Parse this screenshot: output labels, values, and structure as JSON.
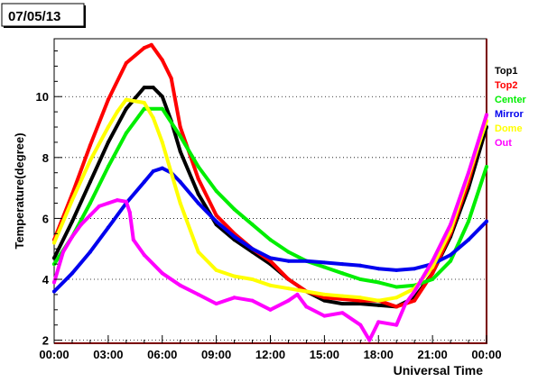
{
  "chart_data": {
    "type": "line",
    "title": "07/05/13",
    "xlabel": "Universal Time",
    "ylabel": "Temperature(degree)",
    "xlim": [
      0,
      24
    ],
    "ylim": [
      1.9,
      11.9
    ],
    "x_tick_labels": [
      "00:00",
      "03:00",
      "06:00",
      "09:00",
      "12:00",
      "15:00",
      "18:00",
      "21:00",
      "00:00"
    ],
    "x_tick_values": [
      0,
      3,
      6,
      9,
      12,
      15,
      18,
      21,
      24
    ],
    "y_tick_labels": [
      "2",
      "4",
      "6",
      "8",
      "10"
    ],
    "y_tick_values": [
      2,
      4,
      6,
      8,
      10
    ],
    "grid": "horizontal-dotted",
    "legend_placement": "right",
    "series": [
      {
        "name": "Top1",
        "color": "#000000",
        "x": [
          0,
          1,
          2,
          3,
          4,
          5,
          5.5,
          6,
          6.5,
          7,
          8,
          9,
          10,
          11,
          12,
          13,
          14,
          15,
          16,
          17,
          18,
          19,
          20,
          21,
          22,
          23,
          24
        ],
        "y": [
          4.7,
          5.9,
          7.2,
          8.5,
          9.6,
          10.3,
          10.3,
          10.0,
          9.2,
          8.2,
          6.8,
          5.8,
          5.3,
          4.9,
          4.5,
          4.0,
          3.6,
          3.3,
          3.2,
          3.2,
          3.15,
          3.1,
          3.4,
          4.2,
          5.4,
          7.0,
          9.0
        ]
      },
      {
        "name": "Top2",
        "color": "#ff0000",
        "x": [
          0,
          1,
          2,
          3,
          4,
          5,
          5.4,
          6,
          6.5,
          7,
          8,
          9,
          10,
          11,
          12,
          13,
          14,
          15,
          16,
          17,
          18,
          19,
          20,
          21,
          22,
          23,
          24
        ],
        "y": [
          5.3,
          6.8,
          8.4,
          9.9,
          11.1,
          11.6,
          11.7,
          11.2,
          10.6,
          9.0,
          7.3,
          6.1,
          5.5,
          5.0,
          4.6,
          4.0,
          3.6,
          3.4,
          3.35,
          3.3,
          3.3,
          3.1,
          3.3,
          4.2,
          5.5,
          7.2,
          9.4
        ]
      },
      {
        "name": "Center",
        "color": "#00ee00",
        "x": [
          0,
          1,
          2,
          3,
          4,
          5,
          6,
          7,
          8,
          9,
          10,
          11,
          12,
          13,
          14,
          15,
          16,
          17,
          18,
          19,
          20,
          21,
          22,
          23,
          24
        ],
        "y": [
          4.5,
          5.4,
          6.5,
          7.7,
          8.8,
          9.6,
          9.6,
          8.7,
          7.7,
          6.9,
          6.3,
          5.8,
          5.3,
          4.9,
          4.6,
          4.4,
          4.2,
          4.0,
          3.9,
          3.75,
          3.8,
          4.0,
          4.6,
          5.9,
          7.7
        ]
      },
      {
        "name": "Mirror",
        "color": "#0000ee",
        "x": [
          0,
          1,
          2,
          3,
          4,
          5,
          5.5,
          6,
          6.5,
          7,
          8,
          9,
          10,
          11,
          12,
          13,
          14,
          15,
          16,
          17,
          18,
          19,
          20,
          21,
          22,
          23,
          24
        ],
        "y": [
          3.6,
          4.2,
          4.9,
          5.7,
          6.5,
          7.2,
          7.55,
          7.65,
          7.5,
          7.2,
          6.5,
          5.9,
          5.4,
          5.0,
          4.7,
          4.6,
          4.6,
          4.55,
          4.5,
          4.45,
          4.35,
          4.3,
          4.35,
          4.5,
          4.8,
          5.3,
          5.9
        ]
      },
      {
        "name": "Dome",
        "color": "#ffff00",
        "x": [
          0,
          1,
          2,
          3,
          3.5,
          4,
          5,
          5.5,
          6,
          6.5,
          7,
          8,
          9,
          10,
          11,
          12,
          13,
          14,
          15,
          16,
          17,
          18,
          19,
          20,
          21,
          22,
          23,
          24
        ],
        "y": [
          5.2,
          6.6,
          7.9,
          9.0,
          9.5,
          9.9,
          9.8,
          9.3,
          8.5,
          7.5,
          6.5,
          4.9,
          4.3,
          4.1,
          4.0,
          3.8,
          3.7,
          3.6,
          3.5,
          3.45,
          3.4,
          3.3,
          3.4,
          3.7,
          4.4,
          5.6,
          7.4,
          9.2
        ]
      },
      {
        "name": "Out",
        "color": "#ff00ff",
        "x": [
          0,
          0.5,
          1,
          1.5,
          2,
          2.5,
          3,
          3.5,
          4,
          4.2,
          4.4,
          5,
          6,
          7,
          8,
          9,
          10,
          11,
          12,
          13,
          13.5,
          14,
          15,
          16,
          17,
          17.5,
          18,
          19,
          19.5,
          20,
          21,
          22,
          23,
          24
        ],
        "y": [
          3.9,
          4.9,
          5.4,
          5.8,
          6.1,
          6.4,
          6.5,
          6.6,
          6.55,
          6.2,
          5.3,
          4.8,
          4.2,
          3.8,
          3.5,
          3.2,
          3.4,
          3.3,
          3.0,
          3.3,
          3.5,
          3.1,
          2.8,
          2.9,
          2.5,
          2.0,
          2.6,
          2.5,
          3.2,
          3.6,
          4.6,
          5.8,
          7.5,
          9.4
        ]
      }
    ]
  }
}
